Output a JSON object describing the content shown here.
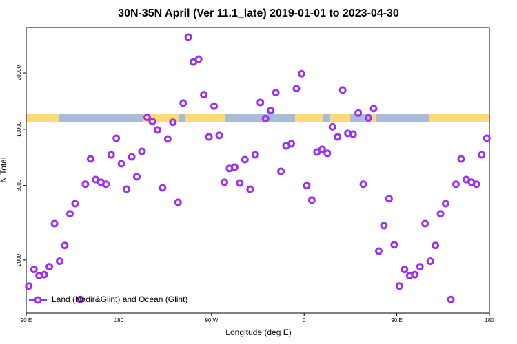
{
  "chart_data": {
    "type": "scatter",
    "title": "30N-35N April (Ver 11.1_late)   2019-01-01 to 2023-04-30",
    "x_label": "Longitude (deg E)",
    "y_label": "N Total",
    "log_y": true,
    "legend": "lower left",
    "xlim": [
      90,
      540
    ],
    "xticks": [
      {
        "value": 90,
        "label": "90 E"
      },
      180,
      {
        "value": 270,
        "label": "90 W"
      },
      {
        "value": 360,
        "label": "0"
      },
      {
        "value": 450,
        "label": "90 E"
      },
      {
        "value": 540,
        "label": "180"
      }
    ],
    "ylim": [
      1040,
      35000
    ],
    "yticks": [
      2000,
      5000,
      10000,
      20000
    ],
    "series": [
      {
        "name": "Land (Nadir&Glint) and Ocean (Glint)",
        "color": "#9b30f0",
        "x": [
          92.5,
          97.5,
          102.5,
          107.5,
          112.5,
          117.5,
          122.5,
          127.5,
          132.5,
          137.5,
          142.5,
          147.5,
          152.5,
          157.5,
          162.5,
          167.5,
          172.5,
          177.5,
          182.5,
          187.5,
          192.5,
          197.5,
          202.5,
          207.5,
          212.5,
          217.5,
          222.5,
          227.5,
          232.5,
          237.5,
          242.5,
          247.5,
          252.5,
          257.5,
          262.5,
          267.5,
          272.5,
          277.5,
          282.5,
          287.5,
          292.5,
          297.5,
          302.5,
          307.5,
          312.5,
          317.5,
          322.5,
          327.5,
          332.5,
          337.5,
          342.5,
          347.5,
          352.5,
          357.5,
          362.5,
          367.5,
          372.5,
          377.5,
          382.5,
          387.5,
          392.5,
          397.5,
          402.5,
          407.5,
          412.5,
          417.5,
          422.5,
          427.5,
          432.5,
          437.5,
          442.5,
          447.5,
          452.5,
          457.5,
          462.5,
          467.5,
          472.5,
          477.5,
          482.5,
          487.5,
          492.5,
          497.5,
          502.5,
          507.5,
          512.5,
          517.5,
          522.5,
          527.5,
          532.5,
          537.5
        ],
        "values": [
          1450,
          1780,
          1650,
          1670,
          1840,
          3130,
          1970,
          2390,
          3530,
          4000,
          1230,
          5080,
          6940,
          5380,
          5210,
          5080,
          7300,
          8950,
          6540,
          4780,
          7120,
          5570,
          7620,
          11600,
          11000,
          9910,
          4860,
          8870,
          10900,
          4070,
          13800,
          31100,
          22900,
          23700,
          15300,
          9100,
          13300,
          9260,
          5210,
          6170,
          6270,
          5160,
          6880,
          4780,
          7300,
          13900,
          11400,
          12600,
          15700,
          5960,
          8150,
          8360,
          16500,
          19800,
          4990,
          4180,
          7550,
          7820,
          7430,
          10300,
          9100,
          16200,
          9500,
          9410,
          12200,
          5080,
          11500,
          12900,
          2230,
          3050,
          4250,
          2410,
          1450,
          1780,
          1650,
          1670,
          1840,
          3130,
          1970,
          2390,
          3530,
          4000,
          1230,
          5080,
          6940,
          5380,
          5210,
          5080,
          7300,
          8950
        ]
      }
    ]
  }
}
